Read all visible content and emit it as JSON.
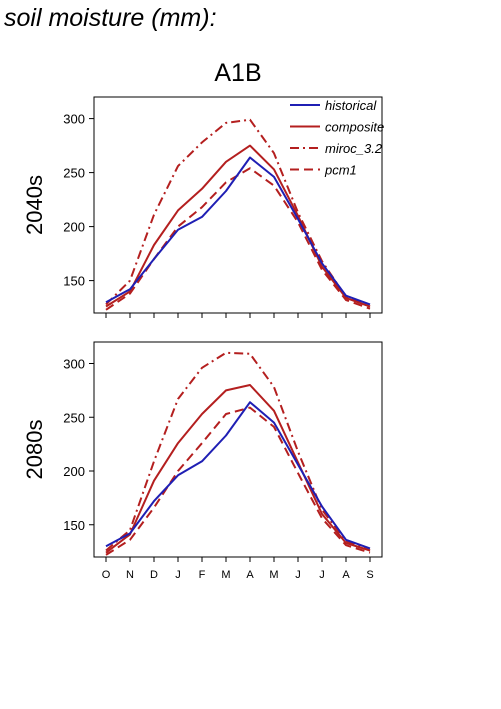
{
  "page": {
    "title": "soil moisture (mm):"
  },
  "colors": {
    "historical": "#1f1fb4",
    "model": "#b41f1f",
    "axis": "#000000"
  },
  "chart_data": {
    "type": "line",
    "scenario": "A1B",
    "months": [
      "O",
      "N",
      "D",
      "J",
      "F",
      "M",
      "A",
      "M",
      "J",
      "J",
      "A",
      "S"
    ],
    "ylim": [
      120,
      320
    ],
    "yticks": [
      150,
      200,
      250,
      300
    ],
    "legend_position": "top-right",
    "legend": [
      {
        "name": "historical",
        "style": "solid",
        "color": "historical"
      },
      {
        "name": "composite",
        "style": "solid",
        "color": "model"
      },
      {
        "name": "miroc_3.2",
        "style": "dashdot",
        "color": "model"
      },
      {
        "name": "pcm1",
        "style": "dashed",
        "color": "model"
      }
    ],
    "panels": [
      {
        "label": "2040s",
        "series": [
          {
            "name": "historical",
            "values": [
              130,
              142,
              170,
              197,
              209,
              233,
              264,
              246,
              207,
              166,
              136,
              128
            ]
          },
          {
            "name": "composite",
            "values": [
              126,
              140,
              183,
              215,
              235,
              260,
              275,
              253,
              210,
              163,
              134,
              126
            ]
          },
          {
            "name": "miroc_3.2",
            "values": [
              128,
              150,
              211,
              256,
              278,
              296,
              299,
              268,
              213,
              168,
              135,
              126
            ]
          },
          {
            "name": "pcm1",
            "values": [
              123,
              138,
              170,
              200,
              218,
              241,
              254,
              238,
              204,
              160,
              132,
              124
            ]
          }
        ]
      },
      {
        "label": "2080s",
        "series": [
          {
            "name": "historical",
            "values": [
              130,
              142,
              172,
              196,
              209,
              233,
              264,
              245,
              206,
              167,
              136,
              128
            ]
          },
          {
            "name": "composite",
            "values": [
              124,
              141,
              191,
              226,
              253,
              275,
              280,
              256,
              208,
              160,
              133,
              126
            ]
          },
          {
            "name": "miroc_3.2",
            "values": [
              126,
              145,
              209,
              267,
              296,
              310,
              309,
              278,
              218,
              164,
              135,
              126
            ]
          },
          {
            "name": "pcm1",
            "values": [
              122,
              136,
              166,
              200,
              226,
              253,
              259,
              241,
              198,
              156,
              131,
              124
            ]
          }
        ]
      }
    ]
  }
}
